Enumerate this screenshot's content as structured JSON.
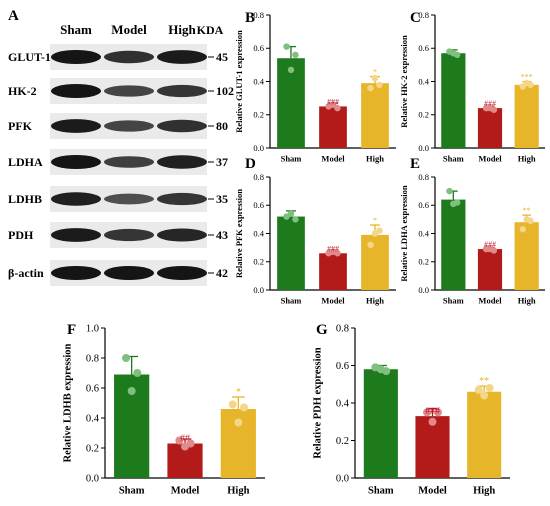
{
  "colors": {
    "sham": "#1d7a1d",
    "model": "#b31b1b",
    "high": "#e7b52a",
    "sham_dot": "#7fbf7f",
    "model_dot": "#e08a8a",
    "high_dot": "#f3d68a",
    "sig": "#c0182a",
    "sig_high": "#e7b52a"
  },
  "blot": {
    "panel_letter": "A",
    "columns": [
      "Sham",
      "Model",
      "High"
    ],
    "kda_header": "KDA",
    "rows": [
      {
        "label": "GLUT-1",
        "kda": "45",
        "intensity": [
          1.0,
          0.75,
          0.95
        ]
      },
      {
        "label": "HK-2",
        "kda": "102",
        "intensity": [
          1.0,
          0.55,
          0.7
        ]
      },
      {
        "label": "PFK",
        "kda": "80",
        "intensity": [
          0.95,
          0.55,
          0.75
        ]
      },
      {
        "label": "LDHA",
        "kda": "37",
        "intensity": [
          1.0,
          0.6,
          0.9
        ]
      },
      {
        "label": "LDHB",
        "kda": "35",
        "intensity": [
          0.9,
          0.45,
          0.7
        ]
      },
      {
        "label": "PDH",
        "kda": "43",
        "intensity": [
          0.95,
          0.7,
          0.85
        ]
      },
      {
        "label": "β-actin",
        "kda": "42",
        "intensity": [
          1.0,
          1.0,
          1.0
        ]
      }
    ]
  },
  "chart_data": [
    {
      "panel": "B",
      "type": "bar",
      "categories": [
        "Sham",
        "Model",
        "High"
      ],
      "values": [
        0.54,
        0.25,
        0.39
      ],
      "errors": [
        0.07,
        0.02,
        0.04
      ],
      "points": [
        [
          0.61,
          0.56,
          0.47
        ],
        [
          0.25,
          0.24,
          0.26
        ],
        [
          0.36,
          0.38,
          0.42
        ]
      ],
      "significance": [
        "",
        "###",
        "*"
      ],
      "ylabel": "Relative GLUT-1 expression",
      "ylim": [
        0,
        0.8
      ],
      "yticks": [
        "0.0",
        "0.2",
        "0.4",
        "0.6",
        "0.8"
      ]
    },
    {
      "panel": "C",
      "type": "bar",
      "categories": [
        "Sham",
        "Model",
        "High"
      ],
      "values": [
        0.57,
        0.24,
        0.38
      ],
      "errors": [
        0.02,
        0.01,
        0.02
      ],
      "points": [
        [
          0.58,
          0.56,
          0.57
        ],
        [
          0.24,
          0.23,
          0.24
        ],
        [
          0.37,
          0.38,
          0.39
        ]
      ],
      "significance": [
        "",
        "###",
        "***"
      ],
      "ylabel": "Relative HK-2 expression",
      "ylim": [
        0,
        0.8
      ],
      "yticks": [
        "0.0",
        "0.2",
        "0.4",
        "0.6",
        "0.8"
      ]
    },
    {
      "panel": "D",
      "type": "bar",
      "categories": [
        "Sham",
        "Model",
        "High"
      ],
      "values": [
        0.52,
        0.26,
        0.39
      ],
      "errors": [
        0.04,
        0.01,
        0.07
      ],
      "points": [
        [
          0.52,
          0.5,
          0.54
        ],
        [
          0.26,
          0.26,
          0.27
        ],
        [
          0.32,
          0.42,
          0.4
        ]
      ],
      "significance": [
        "",
        "###",
        "*"
      ],
      "ylabel": "Relative PFK expression",
      "ylim": [
        0,
        0.8
      ],
      "yticks": [
        "0.0",
        "0.2",
        "0.4",
        "0.6",
        "0.8"
      ]
    },
    {
      "panel": "E",
      "type": "bar",
      "categories": [
        "Sham",
        "Model",
        "High"
      ],
      "values": [
        0.64,
        0.29,
        0.48
      ],
      "errors": [
        0.06,
        0.01,
        0.05
      ],
      "points": [
        [
          0.7,
          0.62,
          0.61
        ],
        [
          0.29,
          0.28,
          0.29
        ],
        [
          0.43,
          0.49,
          0.5
        ]
      ],
      "significance": [
        "",
        "###",
        "**"
      ],
      "ylabel": "Relative LDHA expression",
      "ylim": [
        0,
        0.8
      ],
      "yticks": [
        "0.0",
        "0.2",
        "0.4",
        "0.6",
        "0.8"
      ]
    },
    {
      "panel": "F",
      "type": "bar",
      "categories": [
        "Sham",
        "Model",
        "High"
      ],
      "values": [
        0.69,
        0.23,
        0.46
      ],
      "errors": [
        0.12,
        0.03,
        0.08
      ],
      "points": [
        [
          0.8,
          0.7,
          0.58
        ],
        [
          0.25,
          0.23,
          0.21
        ],
        [
          0.49,
          0.47,
          0.37
        ]
      ],
      "significance": [
        "",
        "##",
        "*"
      ],
      "ylabel": "Relative LDHB expression",
      "ylim": [
        0,
        1.0
      ],
      "yticks": [
        "0.0",
        "0.2",
        "0.4",
        "0.6",
        "0.8",
        "1.0"
      ]
    },
    {
      "panel": "G",
      "type": "bar",
      "categories": [
        "Sham",
        "Model",
        "High"
      ],
      "values": [
        0.58,
        0.33,
        0.46
      ],
      "errors": [
        0.02,
        0.04,
        0.03
      ],
      "points": [
        [
          0.59,
          0.57,
          0.58
        ],
        [
          0.35,
          0.35,
          0.3
        ],
        [
          0.47,
          0.48,
          0.44
        ]
      ],
      "significance": [
        "",
        "###",
        "**"
      ],
      "ylabel": "Relative PDH expression",
      "ylim": [
        0,
        0.8
      ],
      "yticks": [
        "0.0",
        "0.2",
        "0.4",
        "0.6",
        "0.8"
      ]
    }
  ]
}
